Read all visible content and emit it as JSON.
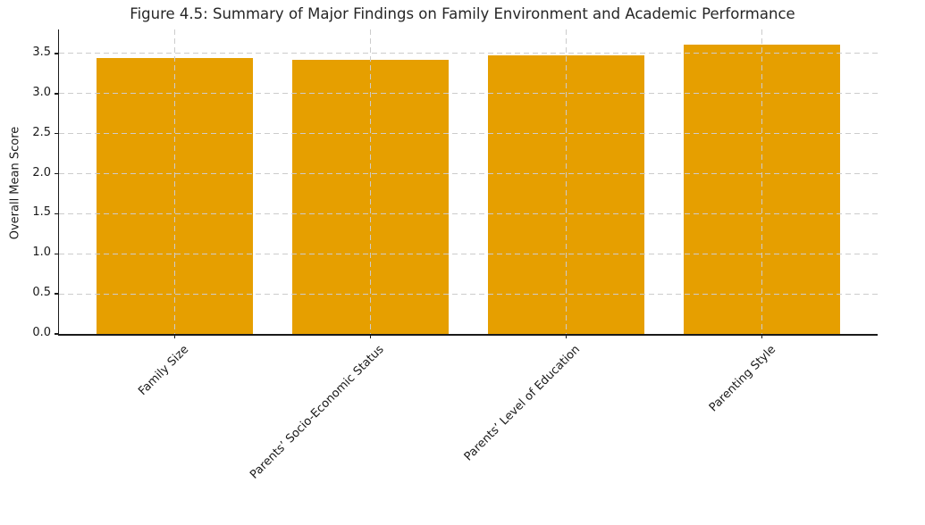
{
  "chart_data": {
    "type": "bar",
    "title": "Figure 4.5: Summary of Major Findings on Family Environment and Academic Performance",
    "categories": [
      "Family Size",
      "Parents’ Socio-Economic Status",
      "Parents’ Level of Education",
      "Parenting Style"
    ],
    "values": [
      3.44,
      3.42,
      3.48,
      3.61
    ],
    "xlabel": "",
    "ylabel": "Overall Mean Score",
    "ylim": [
      0,
      3.8
    ],
    "yticks": [
      0.0,
      0.5,
      1.0,
      1.5,
      2.0,
      2.5,
      3.0,
      3.5
    ],
    "ytick_labels": [
      "0.0",
      "0.5",
      "1.0",
      "1.5",
      "2.0",
      "2.5",
      "3.0",
      "3.5"
    ],
    "x_tick_rotation": 45,
    "grid": true,
    "grid_style": "dashed",
    "legend": "none",
    "bar_color": "#E69F00",
    "grid_color": "#CCCCCC",
    "axis_color": "#1A1A1A",
    "text_color": "#262626",
    "background_color": "#FFFFFF"
  }
}
